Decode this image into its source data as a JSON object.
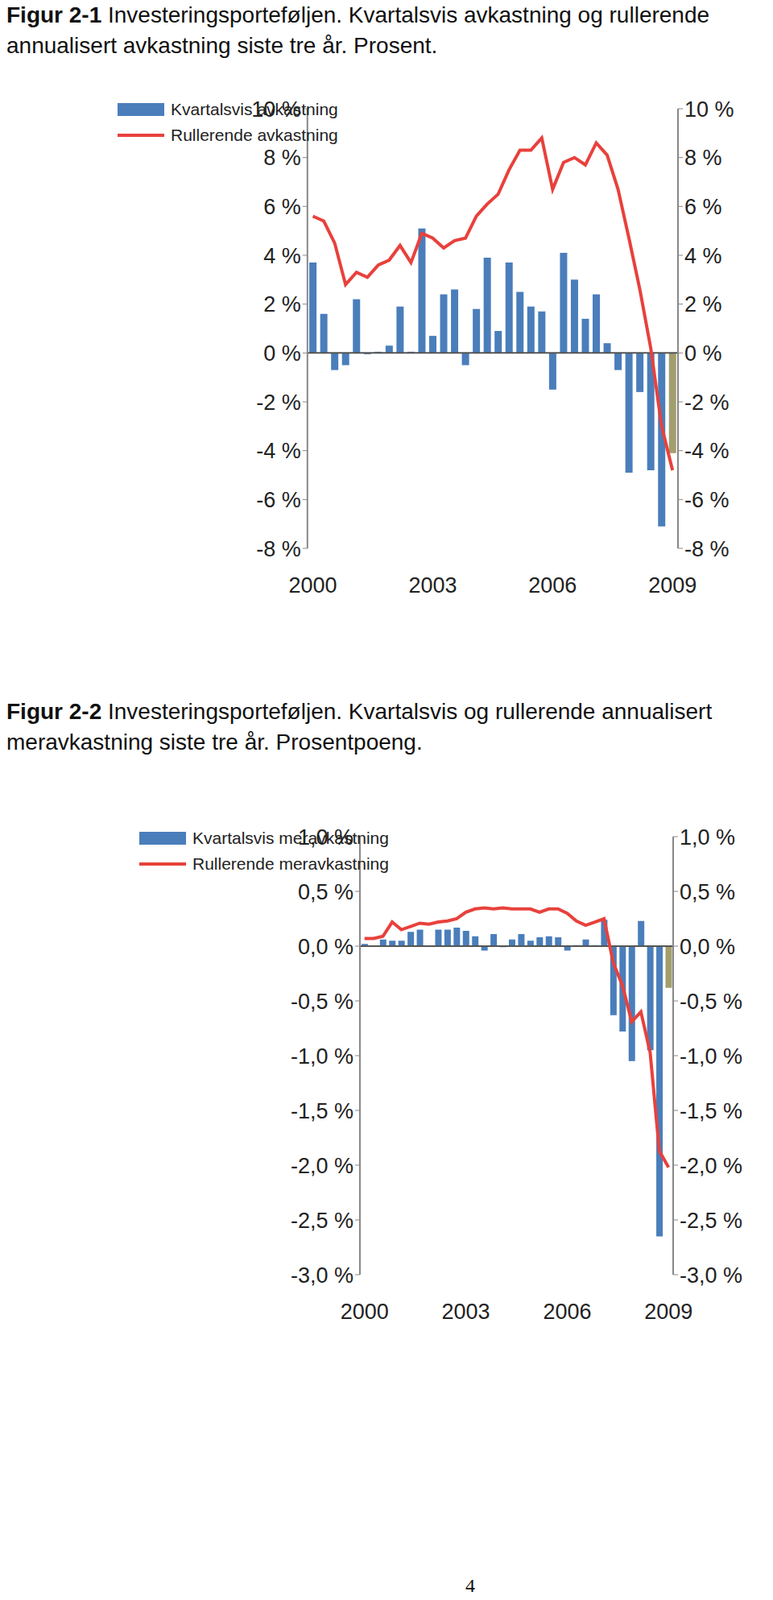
{
  "chart_data": [
    {
      "type": "bar",
      "title": "Figur 2-1 Investeringsporteføljen. Kvartalsvis avkastning og rullerende annualisert avkastning siste tre år. Prosent.",
      "categories": [
        "2000",
        null,
        null,
        null,
        null,
        null,
        null,
        null,
        null,
        null,
        null,
        "2003",
        null,
        null,
        null,
        null,
        null,
        null,
        null,
        null,
        null,
        null,
        "2006",
        null,
        null,
        null,
        null,
        null,
        null,
        null,
        null,
        null,
        null,
        "2009"
      ],
      "series": [
        {
          "name": "Kvartalsvis avkastning",
          "type": "bar",
          "color": "#4a7ebb",
          "colors": [
            "#4a7ebb",
            "#4a7ebb",
            "#4a7ebb",
            "#4a7ebb",
            "#4a7ebb",
            "#4a7ebb",
            "#4a7ebb",
            "#4a7ebb",
            "#4a7ebb",
            "#4a7ebb",
            "#4a7ebb",
            "#4a7ebb",
            "#4a7ebb",
            "#4a7ebb",
            "#4a7ebb",
            "#4a7ebb",
            "#4a7ebb",
            "#4a7ebb",
            "#4a7ebb",
            "#4a7ebb",
            "#4a7ebb",
            "#4a7ebb",
            "#4a7ebb",
            "#4a7ebb",
            "#4a7ebb",
            "#4a7ebb",
            "#4a7ebb",
            "#4a7ebb",
            "#4a7ebb",
            "#4a7ebb",
            "#4a7ebb",
            "#4a7ebb",
            "#4a7ebb",
            "#a39e6e"
          ],
          "values": [
            3.7,
            1.6,
            -0.7,
            -0.5,
            2.2,
            -0.05,
            0.05,
            0.3,
            1.9,
            0.05,
            5.1,
            0.7,
            2.4,
            2.6,
            -0.5,
            1.8,
            3.9,
            0.9,
            3.7,
            2.5,
            1.9,
            1.7,
            -1.5,
            4.1,
            3.0,
            1.4,
            2.4,
            0.4,
            -0.7,
            -4.9,
            -1.6,
            -4.8,
            -7.1,
            -4.1
          ]
        },
        {
          "name": "Rullerende avkastning",
          "type": "line",
          "color": "#e8413c",
          "values": [
            5.6,
            5.4,
            4.5,
            2.8,
            3.3,
            3.1,
            3.6,
            3.8,
            4.4,
            3.7,
            4.9,
            4.7,
            4.3,
            4.6,
            4.7,
            5.6,
            6.1,
            6.5,
            7.5,
            8.3,
            8.3,
            8.8,
            6.7,
            7.8,
            8.0,
            7.7,
            8.6,
            8.1,
            6.7,
            4.7,
            2.6,
            0.2,
            -3.0,
            -4.8
          ]
        }
      ],
      "ylim": [
        -8,
        10
      ],
      "yticks": [
        {
          "value": -8,
          "label": "-8 %"
        },
        {
          "value": -6,
          "label": "-6 %"
        },
        {
          "value": -4,
          "label": "-4 %"
        },
        {
          "value": -2,
          "label": "-2 %"
        },
        {
          "value": 0,
          "label": "0 %"
        },
        {
          "value": 2,
          "label": "2 %"
        },
        {
          "value": 4,
          "label": "4 %"
        },
        {
          "value": 6,
          "label": "6 %"
        },
        {
          "value": 8,
          "label": "8 %"
        },
        {
          "value": 10,
          "label": "10 %"
        }
      ],
      "y2lim": [
        -8,
        10
      ],
      "y2ticks": [
        {
          "value": -8,
          "label": "-8 %"
        },
        {
          "value": -6,
          "label": "-6 %"
        },
        {
          "value": -4,
          "label": "-4 %"
        },
        {
          "value": -2,
          "label": "-2 %"
        },
        {
          "value": 0,
          "label": "0 %"
        },
        {
          "value": 2,
          "label": "2 %"
        },
        {
          "value": 4,
          "label": "4 %"
        },
        {
          "value": 6,
          "label": "6 %"
        },
        {
          "value": 8,
          "label": "8 %"
        },
        {
          "value": 10,
          "label": "10 %"
        }
      ],
      "grid": false,
      "legend": "upper left"
    },
    {
      "type": "bar",
      "title": "Figur 2-2 Investeringsporteføljen. Kvartalsvis og rullerende annualisert meravkastning siste tre år. Prosentpoeng.",
      "categories": [
        "2000",
        null,
        null,
        null,
        null,
        null,
        null,
        null,
        null,
        null,
        null,
        "2003",
        null,
        null,
        null,
        null,
        null,
        null,
        null,
        null,
        null,
        null,
        "2006",
        null,
        null,
        null,
        null,
        null,
        null,
        null,
        null,
        null,
        null,
        "2009"
      ],
      "series": [
        {
          "name": "Kvartalsvis meravkastning",
          "type": "bar",
          "color": "#4a7ebb",
          "colors": [
            "#4a7ebb",
            "#4a7ebb",
            "#4a7ebb",
            "#4a7ebb",
            "#4a7ebb",
            "#4a7ebb",
            "#4a7ebb",
            "#4a7ebb",
            "#4a7ebb",
            "#4a7ebb",
            "#4a7ebb",
            "#4a7ebb",
            "#4a7ebb",
            "#4a7ebb",
            "#4a7ebb",
            "#4a7ebb",
            "#4a7ebb",
            "#4a7ebb",
            "#4a7ebb",
            "#4a7ebb",
            "#4a7ebb",
            "#4a7ebb",
            "#4a7ebb",
            "#4a7ebb",
            "#4a7ebb",
            "#4a7ebb",
            "#4a7ebb",
            "#4a7ebb",
            "#4a7ebb",
            "#4a7ebb",
            "#4a7ebb",
            "#4a7ebb",
            "#4a7ebb",
            "#a39e6e"
          ],
          "values": [
            0.02,
            0.0,
            0.06,
            0.05,
            0.05,
            0.13,
            0.15,
            0.0,
            0.15,
            0.15,
            0.17,
            0.14,
            0.09,
            -0.04,
            0.11,
            -0.01,
            0.06,
            0.11,
            0.05,
            0.08,
            0.09,
            0.08,
            -0.04,
            0.01,
            0.06,
            0.01,
            0.24,
            -0.63,
            -0.78,
            -1.05,
            0.23,
            -0.95,
            -2.65,
            -0.38
          ]
        },
        {
          "name": "Rullerende meravkastning",
          "type": "line",
          "color": "#e8413c",
          "values": [
            0.07,
            0.07,
            0.09,
            0.22,
            0.15,
            0.18,
            0.21,
            0.2,
            0.22,
            0.23,
            0.25,
            0.31,
            0.34,
            0.35,
            0.34,
            0.35,
            0.34,
            0.34,
            0.34,
            0.31,
            0.34,
            0.34,
            0.3,
            0.23,
            0.19,
            0.22,
            0.25,
            -0.15,
            -0.36,
            -0.69,
            -0.6,
            -0.97,
            -1.87,
            -2.02
          ]
        }
      ],
      "ylim": [
        -3,
        1
      ],
      "yticks": [
        {
          "value": -3,
          "label": "-3,0 %"
        },
        {
          "value": -2.5,
          "label": "-2,5 %"
        },
        {
          "value": -2,
          "label": "-2,0 %"
        },
        {
          "value": -1.5,
          "label": "-1,5 %"
        },
        {
          "value": -1,
          "label": "-1,0 %"
        },
        {
          "value": -0.5,
          "label": "-0,5 %"
        },
        {
          "value": 0,
          "label": "0,0 %"
        },
        {
          "value": 0.5,
          "label": "0,5 %"
        },
        {
          "value": 1,
          "label": "1,0 %"
        }
      ],
      "y2lim": [
        -3,
        1
      ],
      "y2ticks": [
        {
          "value": -3,
          "label": "-3,0 %"
        },
        {
          "value": -2.5,
          "label": "-2,5 %"
        },
        {
          "value": -2,
          "label": "-2,0 %"
        },
        {
          "value": -1.5,
          "label": "-1,5 %"
        },
        {
          "value": -1,
          "label": "-1,0 %"
        },
        {
          "value": -0.5,
          "label": "-0,5 %"
        },
        {
          "value": 0,
          "label": "0,0 %"
        },
        {
          "value": 0.5,
          "label": "0,5 %"
        },
        {
          "value": 1,
          "label": "1,0 %"
        }
      ],
      "grid": false,
      "legend": "upper left"
    }
  ],
  "page_number": "4"
}
